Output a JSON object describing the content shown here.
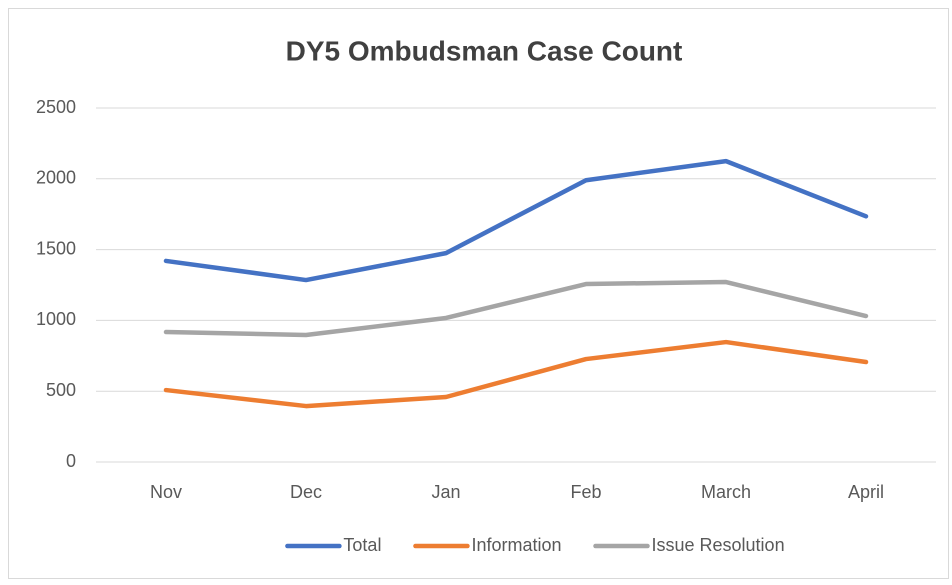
{
  "chart_data": {
    "type": "line",
    "title": "DY5 Ombudsman Case Count",
    "categories": [
      "Nov",
      "Dec",
      "Jan",
      "Feb",
      "March",
      "April"
    ],
    "series": [
      {
        "name": "Total",
        "color": "#4472c4",
        "values": [
          1420,
          1285,
          1475,
          1990,
          2125,
          1735
        ]
      },
      {
        "name": "Information",
        "color": "#ed7d31",
        "values": [
          508,
          395,
          459,
          727,
          847,
          706
        ]
      },
      {
        "name": "Issue Resolution",
        "color": "#a5a5a5",
        "values": [
          918,
          897,
          1017,
          1257,
          1271,
          1031
        ]
      }
    ],
    "ylim": [
      0,
      2500
    ],
    "yticks": [
      0,
      500,
      1000,
      1500,
      2000,
      2500
    ],
    "grid": true,
    "legend": "bottom"
  }
}
